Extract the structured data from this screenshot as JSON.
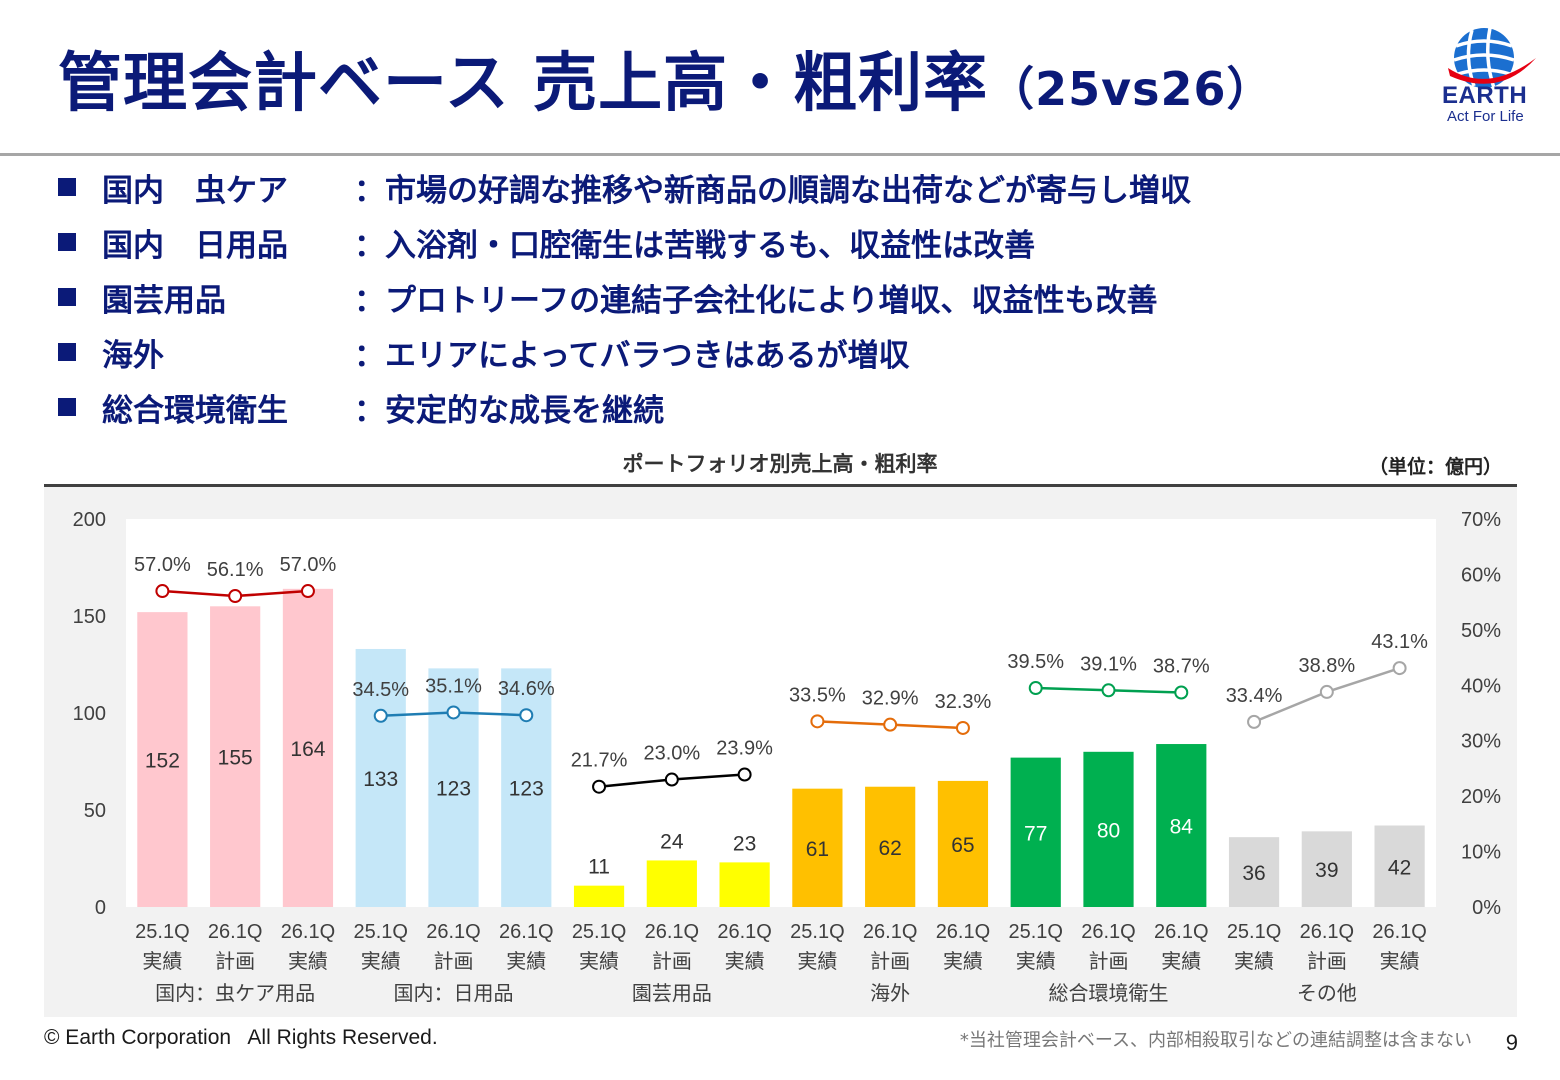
{
  "header": {
    "title": "管理会計ベース 売上高・粗利率",
    "title_suffix": "（25vs26）"
  },
  "logo": {
    "name": "EARTH",
    "tagline": "Act For Life"
  },
  "bullets": [
    {
      "label": "国内　虫ケア",
      "desc": "：市場の好調な推移や新商品の順調な出荷などが寄与し増収"
    },
    {
      "label": "国内　日用品",
      "desc": "：入浴剤・口腔衛生は苦戦するも、収益性は改善"
    },
    {
      "label": "園芸用品",
      "desc": "：プロトリーフの連結子会社化により増収、収益性も改善"
    },
    {
      "label": "海外",
      "desc": "：エリアによってバラつきはあるが増収"
    },
    {
      "label": "総合環境衛生",
      "desc": "：安定的な成長を継続"
    }
  ],
  "unit_label": "（単位：億円）",
  "footer": {
    "copyright": "© Earth Corporation   All Rights Reserved.",
    "note": "*当社管理会計ベース、内部相殺取引などの連結調整は含まない",
    "page": "9"
  },
  "chart_data": {
    "type": "bar",
    "title": "ポートフォリオ別売上高・粗利率",
    "y_left": {
      "min": 0,
      "max": 200,
      "ticks": [
        "0",
        "50",
        "100",
        "150",
        "200"
      ]
    },
    "y_right": {
      "min": 0,
      "max": 70,
      "ticks": [
        "0%",
        "10%",
        "20%",
        "30%",
        "40%",
        "50%",
        "60%",
        "70%"
      ]
    },
    "grid": false,
    "background": "#f2f2f2",
    "groups": [
      {
        "name": "国内：虫ケア用品",
        "bar_color": "#ffc7ce",
        "line_color": "#c00000",
        "categories": [
          [
            "25.1Q",
            "実績"
          ],
          [
            "26.1Q",
            "計画"
          ],
          [
            "26.1Q",
            "実績"
          ]
        ],
        "values": [
          152,
          155,
          164
        ],
        "value_labels": [
          "152",
          "155",
          "164"
        ],
        "margins": [
          57.0,
          56.1,
          57.0
        ],
        "margin_labels": [
          "57.0%",
          "56.1%",
          "57.0%"
        ],
        "label_color": "#333333"
      },
      {
        "name": "国内：日用品",
        "bar_color": "#c5e7f8",
        "line_color": "#1f7db3",
        "categories": [
          [
            "25.1Q",
            "実績"
          ],
          [
            "26.1Q",
            "計画"
          ],
          [
            "26.1Q",
            "実績"
          ]
        ],
        "values": [
          133,
          123,
          123
        ],
        "value_labels": [
          "133",
          "123",
          "123"
        ],
        "margins": [
          34.5,
          35.1,
          34.6
        ],
        "margin_labels": [
          "34.5%",
          "35.1%",
          "34.6%"
        ],
        "label_color": "#333333"
      },
      {
        "name": "園芸用品",
        "bar_color": "#ffff00",
        "line_color": "#000000",
        "categories": [
          [
            "25.1Q",
            "実績"
          ],
          [
            "26.1Q",
            "計画"
          ],
          [
            "26.1Q",
            "実績"
          ]
        ],
        "values": [
          11,
          24,
          23
        ],
        "value_labels": [
          "11",
          "24",
          "23"
        ],
        "margins": [
          21.7,
          23.0,
          23.9
        ],
        "margin_labels": [
          "21.7%",
          "23.0%",
          "23.9%"
        ],
        "label_color": "#333333"
      },
      {
        "name": "海外",
        "bar_color": "#ffc000",
        "line_color": "#e46c0a",
        "categories": [
          [
            "25.1Q",
            "実績"
          ],
          [
            "26.1Q",
            "計画"
          ],
          [
            "26.1Q",
            "実績"
          ]
        ],
        "values": [
          61,
          62,
          65
        ],
        "value_labels": [
          "61",
          "62",
          "65"
        ],
        "margins": [
          33.5,
          32.9,
          32.3
        ],
        "margin_labels": [
          "33.5%",
          "32.9%",
          "32.3%"
        ],
        "label_color": "#333333"
      },
      {
        "name": "総合環境衛生",
        "bar_color": "#00b050",
        "line_color": "#00a050",
        "categories": [
          [
            "25.1Q",
            "実績"
          ],
          [
            "26.1Q",
            "計画"
          ],
          [
            "26.1Q",
            "実績"
          ]
        ],
        "values": [
          77,
          80,
          84
        ],
        "value_labels": [
          "77",
          "80",
          "84"
        ],
        "margins": [
          39.5,
          39.1,
          38.7
        ],
        "margin_labels": [
          "39.5%",
          "39.1%",
          "38.7%"
        ],
        "label_color": "#ffffff"
      },
      {
        "name": "その他",
        "bar_color": "#d9d9d9",
        "line_color": "#a6a6a6",
        "categories": [
          [
            "25.1Q",
            "実績"
          ],
          [
            "26.1Q",
            "計画"
          ],
          [
            "26.1Q",
            "実績"
          ]
        ],
        "values": [
          36,
          39,
          42
        ],
        "value_labels": [
          "36",
          "39",
          "42"
        ],
        "margins": [
          33.4,
          38.8,
          43.1
        ],
        "margin_labels": [
          "33.4%",
          "38.8%",
          "43.1%"
        ],
        "label_color": "#333333"
      }
    ]
  }
}
